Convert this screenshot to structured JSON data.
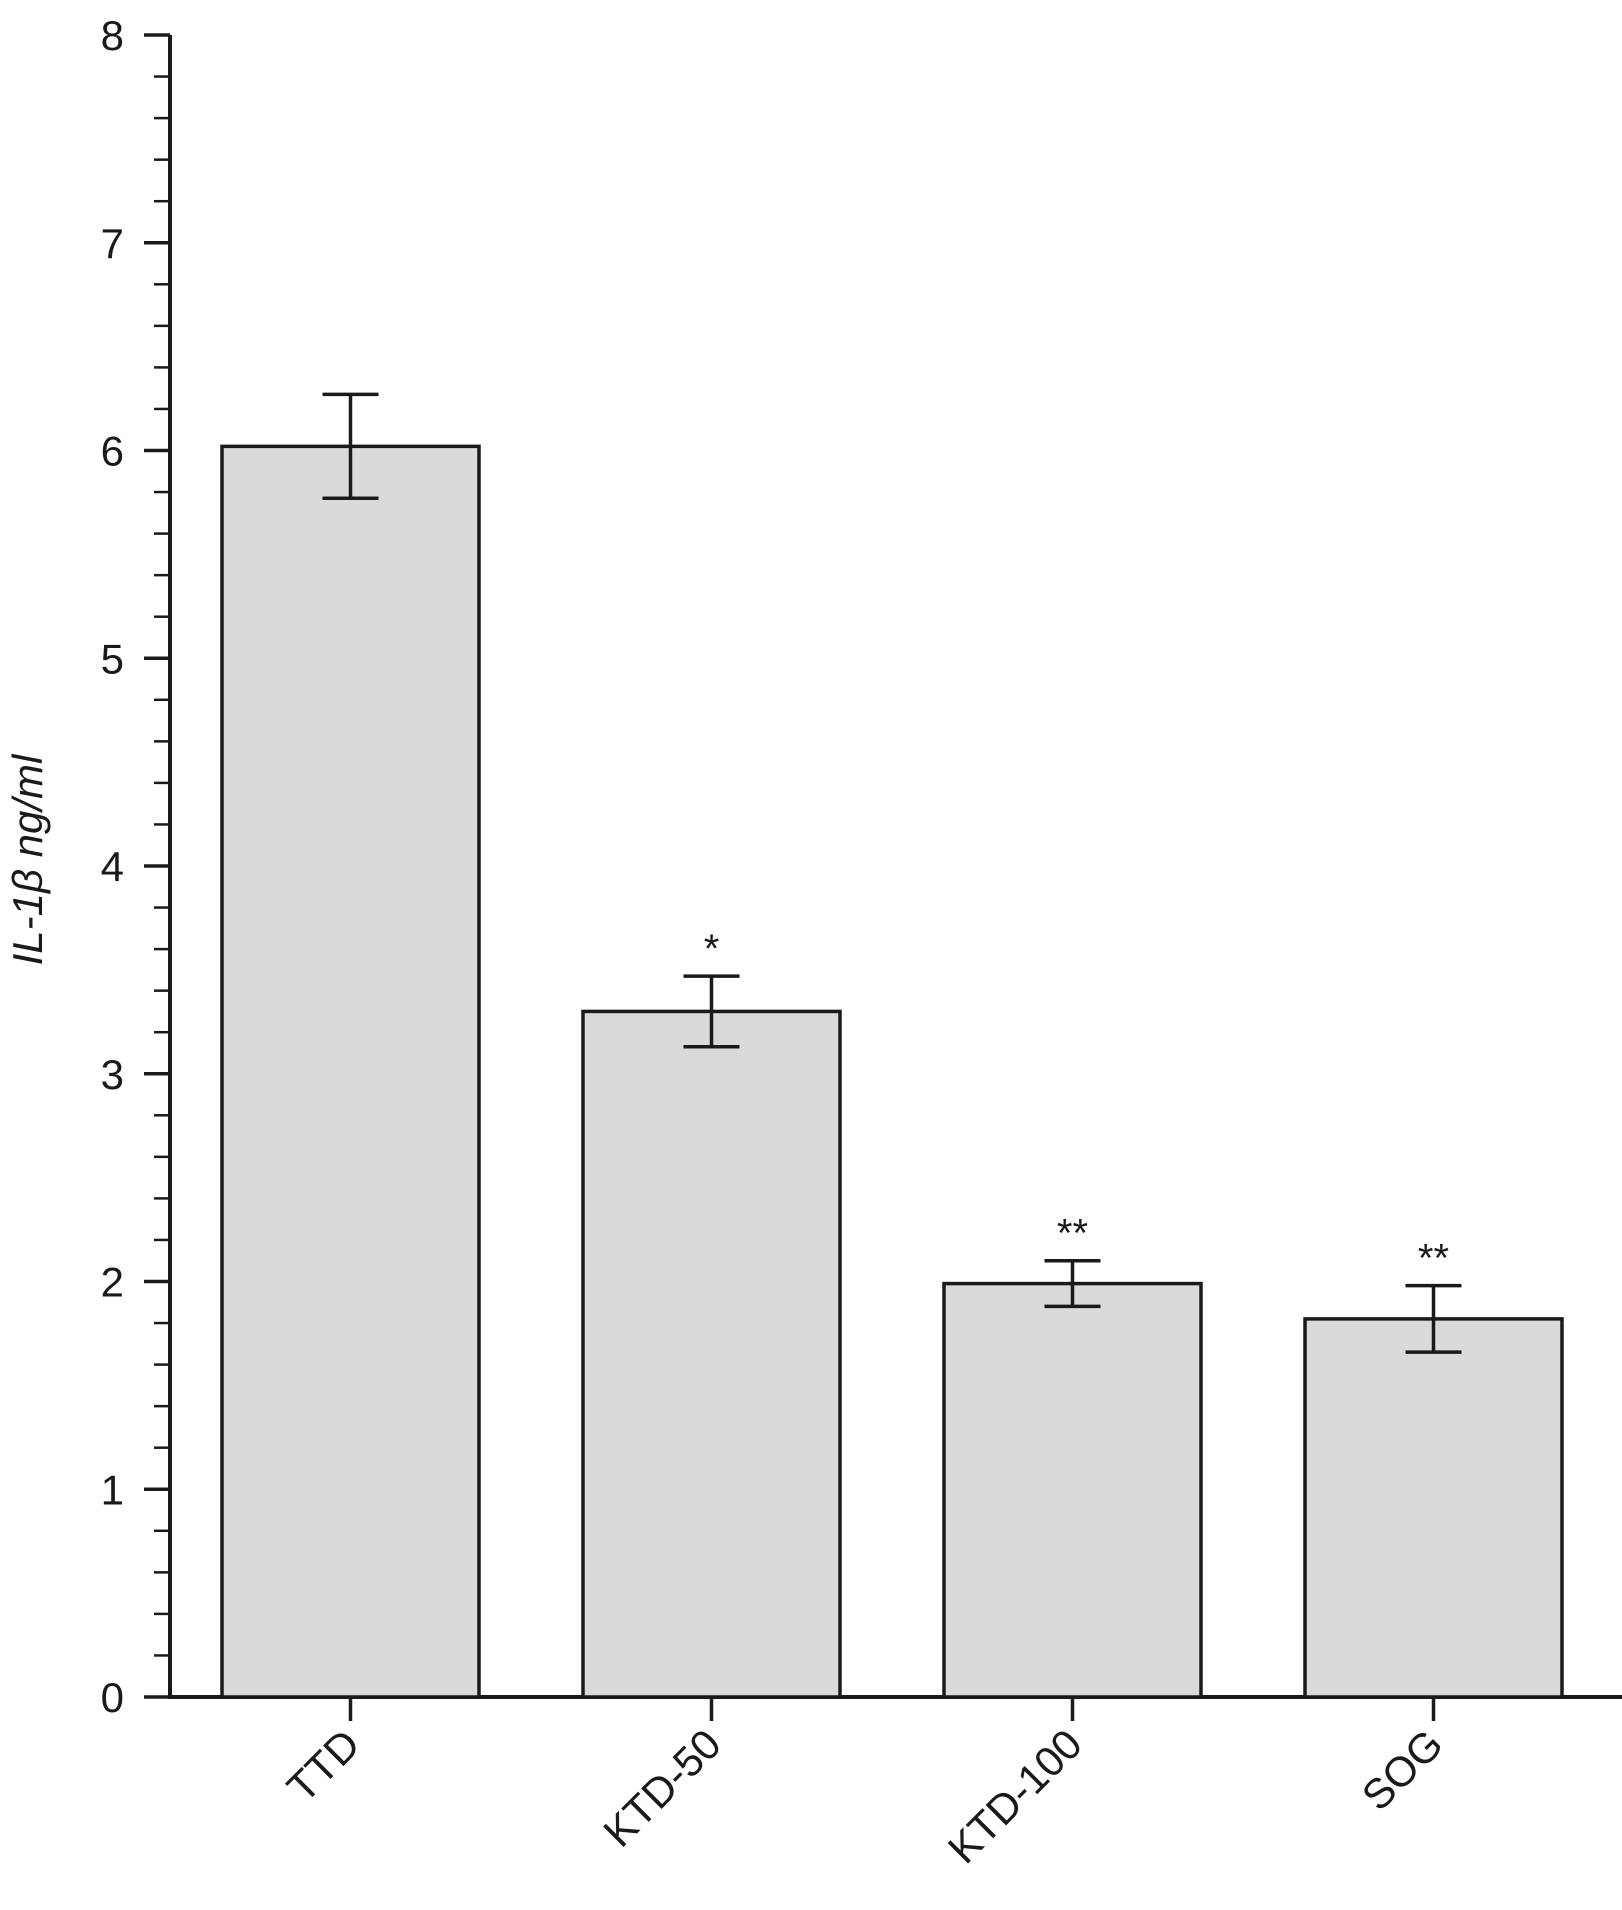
{
  "chart_data": {
    "type": "bar",
    "categories": [
      "TTD",
      "KTD-50",
      "KTD-100",
      "SOG"
    ],
    "values": [
      6.02,
      3.3,
      1.99,
      1.82
    ],
    "error_low": [
      5.77,
      3.13,
      1.88,
      1.66
    ],
    "error_high": [
      6.27,
      3.47,
      2.1,
      1.98
    ],
    "annotations": [
      "",
      "*",
      "**",
      "**"
    ],
    "ylabel": "IL-1β ng/ml",
    "xlabel": "",
    "title": "",
    "ylim": [
      0,
      8
    ],
    "yticks": [
      "0",
      "1",
      "2",
      "3",
      "4",
      "5",
      "6",
      "7",
      "8"
    ],
    "grid": false,
    "colors": {
      "bar_fill": "#d9dadb",
      "bar_stroke": "#1a1a1a",
      "axis": "#1a1a1a"
    }
  }
}
